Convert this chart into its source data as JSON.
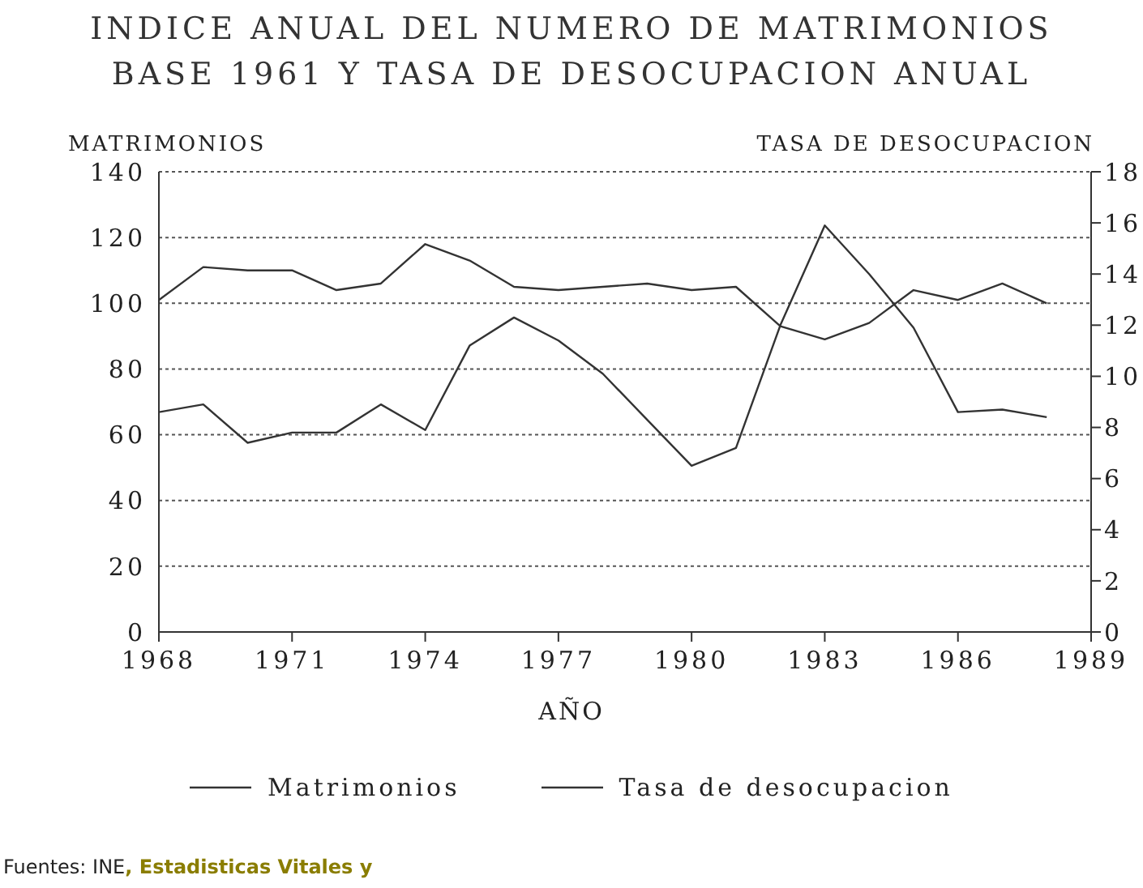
{
  "chart_data": {
    "type": "line",
    "title": "INDICE ANUAL DEL NUMERO DE MATRIMONIOS\nBASE 1961 Y TASA DE DESOCUPACION ANUAL",
    "xlabel": "AÑO",
    "ylabel": "MATRIMONIOS",
    "y2label": "TASA DE DESOCUPACION",
    "x": [
      1968,
      1969,
      1970,
      1971,
      1972,
      1973,
      1974,
      1975,
      1976,
      1977,
      1978,
      1979,
      1980,
      1981,
      1982,
      1983,
      1984,
      1985,
      1986,
      1987,
      1988
    ],
    "series": [
      {
        "name": "Matrimonios",
        "color": "#333333",
        "values": [
          101,
          111,
          110,
          110,
          104,
          106,
          118,
          113,
          105,
          104,
          105,
          106,
          104,
          105,
          93,
          89,
          94,
          104,
          101,
          106,
          100
        ]
      },
      {
        "name": "Tasa de desocupacion",
        "color": "#333333",
        "axis": "y2",
        "values": [
          8.6,
          8.9,
          7.4,
          7.8,
          7.8,
          8.9,
          7.9,
          11.2,
          12.3,
          11.4,
          10.1,
          8.3,
          6.5,
          7.2,
          12.0,
          15.9,
          14.0,
          11.9,
          8.6,
          8.7,
          8.4
        ]
      }
    ],
    "xlim": [
      1968,
      1989
    ],
    "xticks": [
      1968,
      1971,
      1974,
      1977,
      1980,
      1983,
      1986,
      1989
    ],
    "ylim": [
      0,
      140
    ],
    "yticks": [
      0,
      20,
      40,
      60,
      80,
      100,
      120,
      140
    ],
    "y2lim": [
      0,
      18
    ],
    "y2ticks": [
      0,
      2,
      4,
      6,
      8,
      10,
      12,
      14,
      16,
      18
    ],
    "grid": "y",
    "legend": "bottom",
    "marker": "none",
    "line_style": "solid",
    "annotations": [
      "Fuentes: INE",
      ", Estadisticas Vitales y"
    ]
  }
}
